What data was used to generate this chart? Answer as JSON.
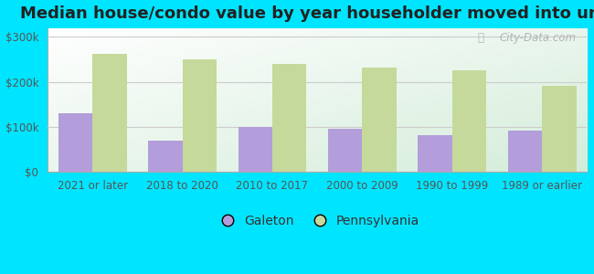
{
  "title": "Median house/condo value by year householder moved into unit",
  "categories": [
    "2021 or later",
    "2018 to 2020",
    "2010 to 2017",
    "2000 to 2009",
    "1990 to 1999",
    "1989 or earlier"
  ],
  "galeton": [
    130000,
    68000,
    100000,
    95000,
    80000,
    90000
  ],
  "pennsylvania": [
    263000,
    250000,
    240000,
    232000,
    225000,
    190000
  ],
  "galeton_color": "#b39ddb",
  "pennsylvania_color": "#c5d99a",
  "background_outer": "#00e5ff",
  "gradient_top_left": "#d4edda",
  "gradient_bottom_right": "#ffffff",
  "yticks": [
    0,
    100000,
    200000,
    300000
  ],
  "ytick_labels": [
    "$0",
    "$100k",
    "$200k",
    "$300k"
  ],
  "ylim": [
    0,
    320000
  ],
  "legend_labels": [
    "Galeton",
    "Pennsylvania"
  ],
  "watermark": "City-Data.com",
  "title_fontsize": 13,
  "axis_fontsize": 8.5,
  "legend_fontsize": 10
}
